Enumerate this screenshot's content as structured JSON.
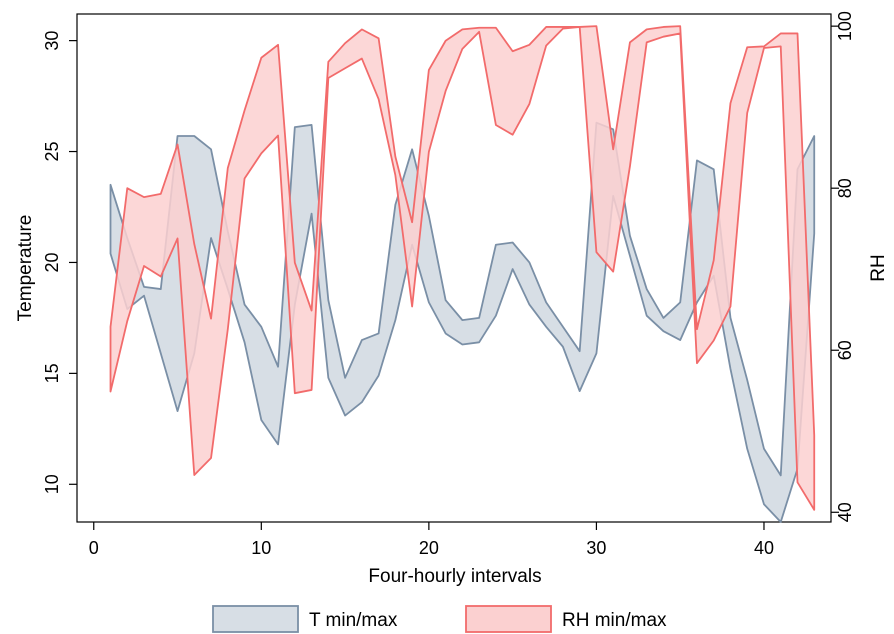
{
  "chart_data": {
    "type": "area",
    "xlabel": "Four-hourly intervals",
    "ylabel_left": "Temperature",
    "ylabel_right": "RH",
    "xlim": [
      -1,
      44
    ],
    "ylim_left": [
      8.3,
      31.2
    ],
    "ylim_right": [
      38.8,
      101.5
    ],
    "x_ticks": [
      0,
      10,
      20,
      30,
      40
    ],
    "y_left_ticks": [
      10,
      15,
      20,
      25,
      30
    ],
    "y_right_ticks": [
      40,
      60,
      80,
      100
    ],
    "grid": false,
    "legend_position": "bottom",
    "x": [
      1,
      2,
      3,
      4,
      5,
      6,
      7,
      8,
      9,
      10,
      11,
      12,
      13,
      14,
      15,
      16,
      17,
      18,
      19,
      20,
      21,
      22,
      23,
      24,
      25,
      26,
      27,
      28,
      29,
      30,
      31,
      32,
      33,
      34,
      35,
      36,
      37,
      38,
      39,
      40,
      41,
      42,
      43
    ],
    "series": [
      {
        "name": "T min/max",
        "axis": "left",
        "color": "#7a8fa6",
        "fill": "#d7dee5",
        "min": [
          20.4,
          17.9,
          18.5,
          15.9,
          13.3,
          15.9,
          21.1,
          18.8,
          16.4,
          12.9,
          11.8,
          18.1,
          22.2,
          14.8,
          13.1,
          13.7,
          14.9,
          17.4,
          20.8,
          18.2,
          16.8,
          16.3,
          16.4,
          17.6,
          19.7,
          18.1,
          17.1,
          16.2,
          14.2,
          15.9,
          23.0,
          20.3,
          17.6,
          16.9,
          16.5,
          18.2,
          19.4,
          15.2,
          11.6,
          9.1,
          8.3,
          10.7,
          21.3
        ],
        "max": [
          23.5,
          21.1,
          18.9,
          18.8,
          25.7,
          25.7,
          25.1,
          21.4,
          18.1,
          17.1,
          15.3,
          26.1,
          26.2,
          18.3,
          14.8,
          16.5,
          16.8,
          22.6,
          25.1,
          22.1,
          18.3,
          17.4,
          17.5,
          20.8,
          20.9,
          20.0,
          18.2,
          17.1,
          16.0,
          26.3,
          26.0,
          21.2,
          18.8,
          17.5,
          18.2,
          24.6,
          24.2,
          17.5,
          14.7,
          11.6,
          10.4,
          24.2,
          25.7
        ]
      },
      {
        "name": "RH min/max",
        "axis": "right",
        "color": "#f26b6b",
        "fill": "#fbd0d0",
        "min": [
          54.9,
          63.6,
          70.4,
          69.1,
          73.8,
          44.6,
          46.7,
          62.6,
          81.2,
          84.3,
          86.5,
          54.7,
          55.1,
          93.6,
          94.8,
          96.0,
          91.0,
          81.6,
          65.4,
          84.5,
          92.0,
          97.2,
          99.3,
          87.8,
          86.6,
          90.4,
          97.6,
          99.7,
          99.9,
          72.1,
          69.7,
          82.7,
          98.0,
          98.7,
          99.1,
          58.4,
          61.2,
          65.4,
          89.3,
          97.3,
          97.5,
          43.7,
          40.3
        ],
        "max": [
          62.9,
          80.0,
          78.9,
          79.3,
          85.4,
          73.1,
          63.9,
          82.5,
          89.6,
          96.1,
          97.7,
          70.8,
          64.9,
          95.6,
          97.9,
          99.6,
          98.5,
          83.9,
          75.8,
          94.6,
          98.2,
          99.6,
          99.8,
          99.8,
          96.9,
          97.7,
          99.9,
          99.9,
          99.9,
          100.0,
          84.8,
          98.0,
          99.6,
          99.9,
          100.0,
          62.6,
          71.1,
          90.5,
          97.4,
          97.5,
          99.1,
          99.1,
          49.5
        ]
      }
    ]
  }
}
